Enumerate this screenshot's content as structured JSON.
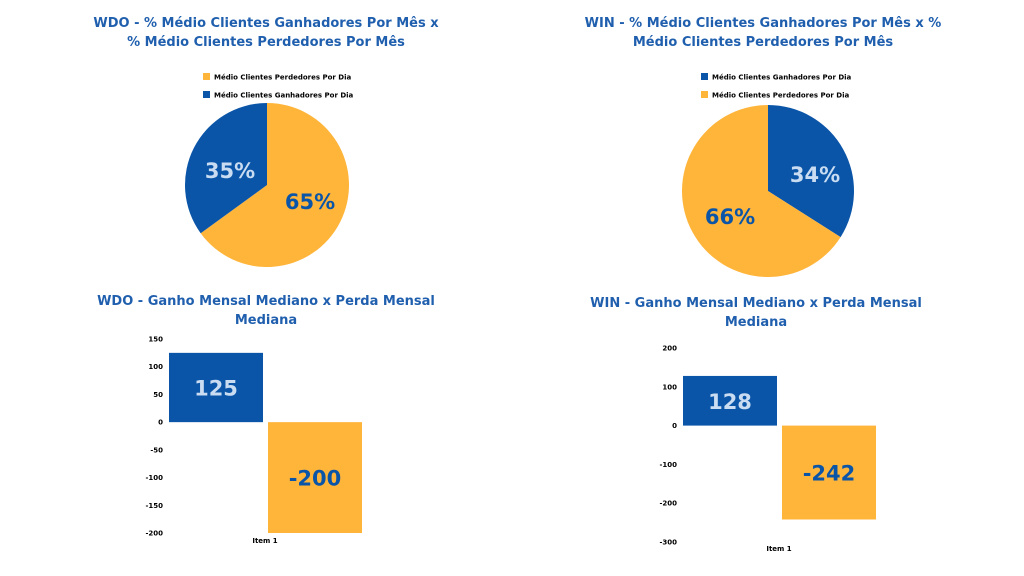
{
  "colors": {
    "blue": "#0b55a8",
    "orange": "#ffb43a",
    "title": "#1f5fae",
    "label_on_blue": "#c9dcf1",
    "label_on_orange": "#0b55a8"
  },
  "chart_data": [
    {
      "type": "pie",
      "title": "WDO - % Médio Clientes Ganhadores Por Mês x % Médio Clientes Perdedores Por Mês",
      "legend": [
        "Médio Clientes Perdedores Por Dia",
        "Médio Clientes Ganhadores Por Dia"
      ],
      "slices": [
        {
          "name": "Médio Clientes Perdedores Por Dia",
          "value": 65,
          "label": "65%",
          "color": "#ffb43a"
        },
        {
          "name": "Médio Clientes Ganhadores Por Dia",
          "value": 35,
          "label": "35%",
          "color": "#0b55a8"
        }
      ]
    },
    {
      "type": "pie",
      "title": "WIN - % Médio Clientes Ganhadores Por Mês x % Médio Clientes Perdedores Por Mês",
      "legend": [
        "Médio Clientes Ganhadores Por Dia",
        "Médio Clientes Perdedores Por Dia"
      ],
      "slices": [
        {
          "name": "Médio Clientes Ganhadores Por Dia",
          "value": 34,
          "label": "34%",
          "color": "#0b55a8"
        },
        {
          "name": "Médio Clientes Perdedores Por Dia",
          "value": 66,
          "label": "66%",
          "color": "#ffb43a"
        }
      ]
    },
    {
      "type": "bar",
      "title": "WDO - Ganho Mensal Mediano x Perda Mensal Mediana",
      "categories": [
        "Item 1"
      ],
      "series": [
        {
          "value": 125,
          "label": "125",
          "color": "#0b55a8"
        },
        {
          "value": -200,
          "label": "-200",
          "color": "#ffb43a"
        }
      ],
      "ylim": [
        -200,
        150
      ],
      "yticks": [
        150,
        100,
        50,
        0,
        -50,
        -100,
        -150,
        -200
      ],
      "ytick_labels": [
        "150",
        "100",
        "50",
        "0",
        "-50",
        "-100",
        "-150",
        "-200"
      ]
    },
    {
      "type": "bar",
      "title": "WIN - Ganho Mensal Mediano x Perda Mensal Mediana",
      "categories": [
        "Item 1"
      ],
      "series": [
        {
          "value": 128,
          "label": "128",
          "color": "#0b55a8"
        },
        {
          "value": -242,
          "label": "-242",
          "color": "#ffb43a"
        }
      ],
      "ylim": [
        -300,
        200
      ],
      "yticks": [
        200,
        100,
        0,
        -100,
        -200,
        -300
      ],
      "ytick_labels": [
        "200",
        "100",
        "0",
        "-100",
        "-200",
        "-300"
      ]
    }
  ]
}
